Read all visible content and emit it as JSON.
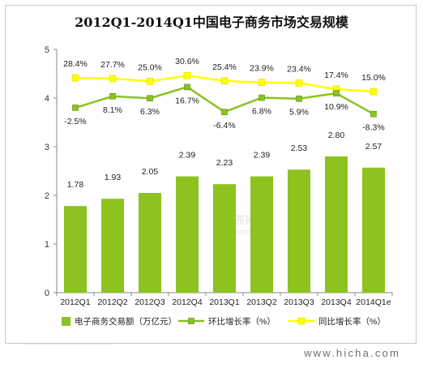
{
  "chart_data": {
    "type": "bar",
    "title": "2012Q1-2014Q1中国电子商务市场交易规模",
    "categories": [
      "2012Q1",
      "2012Q2",
      "2012Q3",
      "2012Q4",
      "2013Q1",
      "2013Q2",
      "2013Q3",
      "2013Q4",
      "2014Q1e"
    ],
    "ylim": [
      0,
      5
    ],
    "yticks": [
      "0",
      "1",
      "2",
      "3",
      "4",
      "5"
    ],
    "grid": false,
    "legend_position": "bottom",
    "series": [
      {
        "name": "电子商务交易额（万亿元）",
        "type": "bar",
        "color": "#8dc21f",
        "values": [
          1.78,
          1.93,
          2.05,
          2.39,
          2.23,
          2.39,
          2.53,
          2.8,
          2.57
        ],
        "labels": [
          "1.78",
          "1.93",
          "2.05",
          "2.39",
          "2.23",
          "2.39",
          "2.53",
          "2.80",
          "2.57"
        ]
      },
      {
        "name": "环比增长率（%）",
        "type": "line",
        "color": "#8dc21f",
        "values": [
          -2.5,
          8.1,
          6.3,
          16.7,
          -6.4,
          6.8,
          5.9,
          10.9,
          -8.3
        ],
        "labels": [
          "-2.5%",
          "8.1%",
          "6.3%",
          "16.7%",
          "-6.4%",
          "6.8%",
          "5.9%",
          "10.9%",
          "-8.3%"
        ]
      },
      {
        "name": "同比增长率（%）",
        "type": "line",
        "color": "#ffff00",
        "values": [
          28.4,
          27.7,
          25.0,
          30.6,
          25.4,
          23.9,
          23.4,
          17.4,
          15.0
        ],
        "labels": [
          "28.4%",
          "27.7%",
          "25.0%",
          "30.6%",
          "25.4%",
          "23.9%",
          "23.4%",
          "17.4%",
          "15.0%"
        ]
      }
    ]
  },
  "watermark": {
    "site": "www.hicha.com",
    "logo": "Hi",
    "logo_cn": "茶网",
    "logo_small": "com"
  }
}
